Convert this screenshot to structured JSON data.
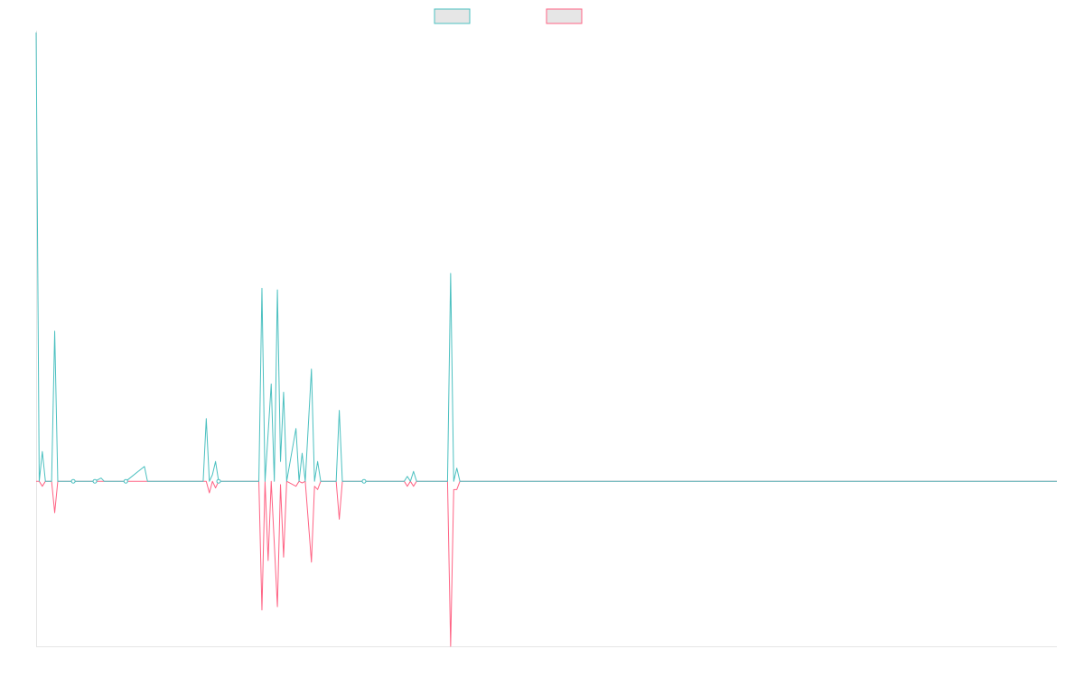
{
  "colors": {
    "series_a": "#4bc0c0",
    "series_b": "#ff6384",
    "legend_fill": "#e6e6e6",
    "axis": "#e5e5e5"
  },
  "chart_data": {
    "type": "line",
    "title": "",
    "xlabel": "",
    "ylabel": "",
    "grid": false,
    "legend": "top-center",
    "ylim": [
      -100,
      272
    ],
    "x_count": 330,
    "series": [
      {
        "color": "#4bc0c0",
        "points": [
          [
            0,
            272
          ],
          [
            1,
            0
          ],
          [
            2,
            18
          ],
          [
            3,
            0
          ],
          [
            5,
            0
          ],
          [
            6,
            91
          ],
          [
            7,
            0
          ],
          [
            12,
            0
          ],
          [
            19,
            0
          ],
          [
            21,
            2
          ],
          [
            22,
            0
          ],
          [
            29,
            0
          ],
          [
            35,
            9
          ],
          [
            36,
            0
          ],
          [
            54,
            0
          ],
          [
            55,
            38
          ],
          [
            56,
            0
          ],
          [
            57,
            4
          ],
          [
            58,
            12
          ],
          [
            59,
            0
          ],
          [
            72,
            0
          ],
          [
            73,
            117
          ],
          [
            74,
            0
          ],
          [
            75,
            29
          ],
          [
            76,
            59
          ],
          [
            77,
            0
          ],
          [
            78,
            116
          ],
          [
            79,
            12
          ],
          [
            80,
            54
          ],
          [
            81,
            0
          ],
          [
            84,
            32
          ],
          [
            85,
            0
          ],
          [
            86,
            17
          ],
          [
            87,
            0
          ],
          [
            89,
            68
          ],
          [
            90,
            0
          ],
          [
            91,
            12
          ],
          [
            92,
            0
          ],
          [
            97,
            0
          ],
          [
            98,
            43
          ],
          [
            99,
            0
          ],
          [
            106,
            0
          ],
          [
            119,
            0
          ],
          [
            120,
            3
          ],
          [
            121,
            0
          ],
          [
            122,
            6
          ],
          [
            123,
            0
          ],
          [
            133,
            0
          ],
          [
            134,
            126
          ],
          [
            135,
            0
          ],
          [
            136,
            8
          ],
          [
            137,
            0
          ],
          [
            330,
            0
          ]
        ]
      },
      {
        "color": "#ff6384",
        "points": [
          [
            0,
            0
          ],
          [
            1,
            0
          ],
          [
            2,
            -3
          ],
          [
            3,
            0
          ],
          [
            5,
            0
          ],
          [
            6,
            -19
          ],
          [
            7,
            0
          ],
          [
            55,
            0
          ],
          [
            56,
            -7
          ],
          [
            57,
            0
          ],
          [
            58,
            -4
          ],
          [
            59,
            0
          ],
          [
            72,
            0
          ],
          [
            73,
            -78
          ],
          [
            74,
            0
          ],
          [
            75,
            -48
          ],
          [
            76,
            0
          ],
          [
            78,
            -76
          ],
          [
            79,
            -2
          ],
          [
            80,
            -46
          ],
          [
            81,
            0
          ],
          [
            84,
            -3
          ],
          [
            85,
            0
          ],
          [
            86,
            -1
          ],
          [
            87,
            0
          ],
          [
            89,
            -49
          ],
          [
            90,
            -3
          ],
          [
            91,
            -5
          ],
          [
            92,
            0
          ],
          [
            97,
            0
          ],
          [
            98,
            -23
          ],
          [
            99,
            0
          ],
          [
            119,
            0
          ],
          [
            120,
            -3
          ],
          [
            121,
            0
          ],
          [
            122,
            -3
          ],
          [
            123,
            0
          ],
          [
            133,
            0
          ],
          [
            134,
            -100
          ],
          [
            135,
            -5
          ],
          [
            136,
            -5
          ],
          [
            137,
            0
          ],
          [
            330,
            0
          ]
        ]
      }
    ],
    "markers": [
      [
        12,
        0
      ],
      [
        19,
        0
      ],
      [
        29,
        0
      ],
      [
        59,
        0
      ],
      [
        106,
        0
      ]
    ]
  }
}
